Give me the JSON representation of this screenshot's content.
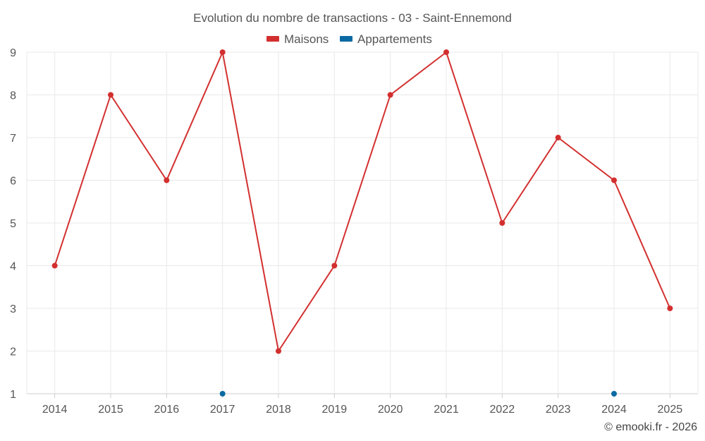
{
  "chart_data": {
    "type": "line",
    "title": "Evolution du nombre de transactions - 03 - Saint-Ennemond",
    "categories": [
      "2014",
      "2015",
      "2016",
      "2017",
      "2018",
      "2019",
      "2020",
      "2021",
      "2022",
      "2023",
      "2024",
      "2025"
    ],
    "series": [
      {
        "name": "Maisons",
        "color": "#d32f2f",
        "values": [
          4,
          8,
          6,
          9,
          2,
          4,
          8,
          9,
          5,
          7,
          6,
          3
        ]
      },
      {
        "name": "Appartements",
        "color": "#0b6aa2",
        "values": [
          null,
          null,
          null,
          1,
          null,
          null,
          null,
          null,
          null,
          null,
          1,
          null
        ]
      }
    ],
    "ylim": [
      1,
      9
    ],
    "yticks": [
      1,
      2,
      3,
      4,
      5,
      6,
      7,
      8,
      9
    ],
    "grid": true,
    "legend": "top-center",
    "xlabel": "",
    "ylabel": ""
  },
  "credit": "© emooki.fr - 2026"
}
